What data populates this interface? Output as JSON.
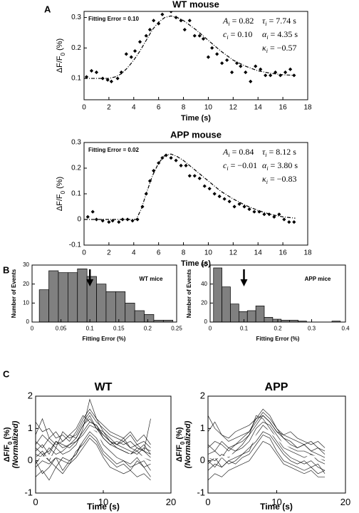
{
  "panel_labels": [
    "A",
    "B",
    "C"
  ],
  "chart_data": [
    {
      "type": "scatter",
      "title": "WT mouse",
      "annotation": "Fitting Error = 0.10",
      "params": [
        {
          "symbol": "A",
          "sub": "i",
          "value": "= 0.82"
        },
        {
          "symbol": "τ",
          "sub": "i",
          "value": "= 7.74 s"
        },
        {
          "symbol": "c",
          "sub": "i",
          "value": "= 0.10"
        },
        {
          "symbol": "α",
          "sub": "i",
          "value": "= 4.35 s"
        },
        {
          "symbol": "κ",
          "sub": "i",
          "value": "= −0.57"
        }
      ],
      "x": [
        0.2,
        0.6,
        1.0,
        1.5,
        1.9,
        2.2,
        2.7,
        3.0,
        3.4,
        3.8,
        4.1,
        4.5,
        5.0,
        5.3,
        5.6,
        6.0,
        6.3,
        6.7,
        7.0,
        7.4,
        7.8,
        8.1,
        8.5,
        8.9,
        9.3,
        9.6,
        10.0,
        10.3,
        10.7,
        11.1,
        11.5,
        11.9,
        12.3,
        12.6,
        13.0,
        13.4,
        13.8,
        14.2,
        14.6,
        15.0,
        15.4,
        15.8,
        16.2,
        16.6,
        16.9
      ],
      "values": [
        0.105,
        0.125,
        0.12,
        0.1,
        0.095,
        0.09,
        0.1,
        0.12,
        0.18,
        0.17,
        0.19,
        0.22,
        0.24,
        0.26,
        0.29,
        0.28,
        0.31,
        0.325,
        0.32,
        0.3,
        0.29,
        0.26,
        0.29,
        0.24,
        0.24,
        0.23,
        0.17,
        0.2,
        0.18,
        0.15,
        0.16,
        0.12,
        0.15,
        0.14,
        0.12,
        0.09,
        0.14,
        0.13,
        0.11,
        0.11,
        0.12,
        0.11,
        0.12,
        0.13,
        0.11
      ],
      "fit": {
        "x": [
          0,
          1,
          2,
          2.5,
          3,
          3.5,
          4,
          4.5,
          5,
          5.5,
          6,
          6.5,
          7,
          7.5,
          8,
          9,
          10,
          11,
          12,
          13,
          14,
          15,
          16,
          17
        ],
        "values": [
          0.1,
          0.1,
          0.1,
          0.105,
          0.115,
          0.135,
          0.16,
          0.19,
          0.225,
          0.26,
          0.285,
          0.3,
          0.305,
          0.3,
          0.29,
          0.26,
          0.225,
          0.19,
          0.16,
          0.14,
          0.125,
          0.117,
          0.112,
          0.11
        ]
      },
      "xlabel": "Time (s)",
      "ylabel": {
        "main": "ΔF/F",
        "sub": "0",
        "tail": " (%)"
      },
      "xlim": [
        0,
        18
      ],
      "xticks": [
        0,
        2,
        4,
        6,
        8,
        10,
        12,
        14,
        16,
        18
      ],
      "ylim": [
        0.03,
        0.32
      ],
      "yticks": [
        0.1,
        0.2,
        0.3
      ],
      "color": "#000000"
    },
    {
      "type": "scatter",
      "title": "APP mouse",
      "annotation": "Fitting Error = 0.02",
      "params": [
        {
          "symbol": "A",
          "sub": "i",
          "value": "= 0.84"
        },
        {
          "symbol": "τ",
          "sub": "i",
          "value": "= 8.12 s"
        },
        {
          "symbol": "c",
          "sub": "i",
          "value": "= −0.01"
        },
        {
          "symbol": "α",
          "sub": "i",
          "value": "= 3.80 s"
        },
        {
          "symbol": "κ",
          "sub": "i",
          "value": "= −0.83"
        }
      ],
      "x": [
        0.3,
        0.7,
        1.0,
        1.5,
        2.0,
        2.3,
        2.8,
        3.1,
        3.5,
        3.9,
        4.3,
        4.7,
        5.0,
        5.3,
        5.6,
        6.0,
        6.3,
        6.6,
        7.0,
        7.4,
        7.8,
        8.2,
        8.5,
        8.9,
        9.3,
        9.7,
        10.1,
        10.5,
        10.9,
        11.3,
        11.7,
        12.1,
        12.5,
        12.9,
        13.3,
        13.7,
        14.1,
        14.5,
        14.9,
        15.3,
        15.7,
        16.1,
        16.5,
        16.9
      ],
      "values": [
        0.01,
        0.03,
        0.0,
        -0.005,
        -0.01,
        -0.005,
        -0.01,
        0.0,
        0.0,
        -0.005,
        0.0,
        0.05,
        0.1,
        0.15,
        0.19,
        0.22,
        0.24,
        0.25,
        0.24,
        0.23,
        0.21,
        0.21,
        0.17,
        0.17,
        0.16,
        0.13,
        0.12,
        0.1,
        0.09,
        0.08,
        0.07,
        0.05,
        0.06,
        0.05,
        0.04,
        0.03,
        0.03,
        0.02,
        0.02,
        0.01,
        0.02,
        0.0,
        -0.01,
        -0.01
      ],
      "fit": {
        "x": [
          0,
          4.2,
          4.6,
          5,
          5.5,
          6,
          6.5,
          7,
          7.5,
          8,
          9,
          10,
          11,
          12,
          13,
          14,
          15,
          16,
          17
        ],
        "values": [
          0,
          0,
          0.04,
          0.1,
          0.17,
          0.22,
          0.25,
          0.255,
          0.245,
          0.23,
          0.19,
          0.15,
          0.11,
          0.08,
          0.055,
          0.035,
          0.02,
          0.01,
          0.005
        ]
      },
      "xlabel": "Time (s)",
      "ylabel": {
        "main": "ΔF/F",
        "sub": "0",
        "tail": " (%)"
      },
      "xlim": [
        0,
        18
      ],
      "xticks": [
        0,
        2,
        4,
        6,
        8,
        10,
        12,
        14,
        16,
        18
      ],
      "ylim": [
        -0.1,
        0.3
      ],
      "yticks": [
        -0.1,
        0,
        0.1,
        0.2,
        0.3
      ],
      "color": "#000000"
    },
    {
      "type": "histogram",
      "annotation": "WT mice",
      "bins": [
        0.0125,
        0.029,
        0.0455,
        0.062,
        0.0785,
        0.095,
        0.1115,
        0.128,
        0.1445,
        0.161,
        0.1775,
        0.194,
        0.2105,
        0.227,
        0.2435
      ],
      "counts": [
        17,
        27,
        26,
        26,
        28,
        24,
        20,
        16,
        16,
        10,
        6,
        4,
        1,
        1
      ],
      "arrow_x": 0.1,
      "xlabel": "Fitting Error (%)",
      "ylabel": {
        "main": "Number of Events"
      },
      "xlim": [
        0,
        0.25
      ],
      "xticks": [
        0,
        0.05,
        0.1,
        0.15,
        0.2,
        0.25
      ],
      "ylim": [
        0,
        30
      ],
      "yticks": [
        0,
        10,
        20,
        30
      ],
      "color": "#808080"
    },
    {
      "type": "histogram",
      "annotation": "APP mice",
      "bins": [
        0.01,
        0.035,
        0.06,
        0.085,
        0.11,
        0.135,
        0.16,
        0.185,
        0.21,
        0.235,
        0.26,
        0.285,
        0.31,
        0.335,
        0.36,
        0.385
      ],
      "counts": [
        57,
        37,
        19,
        11,
        12,
        17,
        5,
        3,
        2,
        2,
        1,
        0,
        0,
        0,
        1
      ],
      "arrow_x": 0.1,
      "xlabel": "Fitting Error (%)",
      "ylabel": {
        "main": "Number of Events"
      },
      "xlim": [
        0,
        0.4
      ],
      "xticks": [
        0,
        0.1,
        0.2,
        0.3,
        0.4
      ],
      "ylim": [
        0,
        60
      ],
      "yticks": [
        0,
        20,
        40,
        60
      ],
      "color": "#808080"
    },
    {
      "type": "line",
      "title": "WT",
      "x": [
        0,
        1,
        2,
        3,
        4,
        5,
        6,
        7,
        8,
        9,
        10,
        11,
        12,
        13,
        14,
        15,
        16,
        17
      ],
      "traces": [
        [
          0.3,
          0.5,
          0.2,
          0.6,
          0.4,
          0.5,
          0.7,
          1.1,
          1.4,
          1.0,
          0.8,
          0.6,
          0.5,
          0.7,
          0.4,
          0.3,
          0.5,
          0.2
        ],
        [
          -0.2,
          0.0,
          -0.1,
          0.1,
          -0.3,
          0.0,
          0.2,
          0.6,
          0.9,
          0.7,
          0.3,
          0.1,
          -0.1,
          0.0,
          -0.2,
          -0.1,
          0.0,
          -0.3
        ],
        [
          0.5,
          0.8,
          0.6,
          0.4,
          0.9,
          0.7,
          0.8,
          1.2,
          1.5,
          1.2,
          1.0,
          0.8,
          0.7,
          0.6,
          0.8,
          0.5,
          0.6,
          0.4
        ],
        [
          0.0,
          -0.4,
          -0.2,
          0.1,
          0.0,
          -0.1,
          0.3,
          0.5,
          0.8,
          0.6,
          0.2,
          0.0,
          -0.2,
          -0.1,
          -0.3,
          0.0,
          -0.2,
          -0.5
        ],
        [
          0.2,
          0.1,
          0.4,
          0.2,
          0.3,
          0.5,
          0.6,
          0.9,
          1.2,
          1.1,
          0.7,
          0.5,
          0.4,
          0.3,
          0.2,
          0.3,
          0.1,
          0.0
        ],
        [
          1.2,
          0.9,
          1.0,
          0.7,
          0.8,
          0.6,
          0.9,
          1.3,
          1.6,
          1.3,
          1.1,
          0.9,
          0.8,
          0.7,
          0.9,
          0.6,
          0.8,
          0.5
        ],
        [
          -0.5,
          -0.3,
          -0.6,
          -0.2,
          -0.4,
          -0.1,
          0.1,
          0.4,
          0.7,
          0.5,
          0.1,
          -0.2,
          -0.3,
          -0.4,
          -0.3,
          -0.5,
          -0.4,
          -0.6
        ],
        [
          0.1,
          0.3,
          0.0,
          0.4,
          0.2,
          0.3,
          0.5,
          1.0,
          1.9,
          1.3,
          0.9,
          0.6,
          0.4,
          0.3,
          0.2,
          0.4,
          0.3,
          0.1
        ],
        [
          0.6,
          0.4,
          0.7,
          0.5,
          0.6,
          0.8,
          1.0,
          1.4,
          1.2,
          1.1,
          0.8,
          0.6,
          0.5,
          0.6,
          0.4,
          0.5,
          0.3,
          1.3
        ],
        [
          -0.1,
          0.2,
          0.0,
          -0.2,
          0.1,
          0.0,
          0.2,
          0.7,
          1.0,
          0.9,
          0.5,
          0.3,
          0.1,
          0.0,
          -0.1,
          0.1,
          -0.2,
          -0.1
        ],
        [
          0.4,
          0.2,
          0.3,
          0.6,
          0.5,
          0.4,
          0.6,
          0.8,
          1.1,
          1.0,
          0.9,
          0.7,
          0.5,
          0.4,
          0.3,
          0.2,
          0.4,
          0.3
        ],
        [
          0.8,
          1.3,
          0.7,
          0.9,
          0.6,
          0.8,
          0.7,
          1.1,
          1.3,
          1.0,
          0.7,
          0.5,
          0.6,
          0.5,
          0.6,
          0.4,
          0.3,
          0.2
        ]
      ],
      "mean": [
        0.1,
        0.1,
        0.12,
        0.12,
        0.15,
        0.22,
        0.35,
        0.7,
        1.0,
        0.85,
        0.6,
        0.4,
        0.3,
        0.22,
        0.18,
        0.15,
        0.12,
        0.05
      ],
      "trace_color": "#000000",
      "mean_color": "#ffffff",
      "xlabel": "Time (s)",
      "ylabel": {
        "main": "ΔF/F",
        "sub": "0",
        "tail": " (%)",
        "note": "(Normalized)"
      },
      "xlim": [
        0,
        20
      ],
      "xticks": [
        0,
        10,
        20
      ],
      "ylim": [
        -1,
        2
      ],
      "yticks": [
        -1,
        0,
        1,
        2
      ]
    },
    {
      "type": "line",
      "title": "APP",
      "x": [
        0,
        1,
        2,
        3,
        4,
        5,
        6,
        7,
        8,
        9,
        10,
        11,
        12,
        13,
        14,
        15,
        16,
        17
      ],
      "traces": [
        [
          1.4,
          1.0,
          0.8,
          0.6,
          0.7,
          0.8,
          0.9,
          1.2,
          1.5,
          1.3,
          1.0,
          0.8,
          0.7,
          0.6,
          0.5,
          0.6,
          0.4,
          0.3
        ],
        [
          -0.3,
          -0.1,
          -0.2,
          0.0,
          -0.1,
          0.1,
          0.2,
          0.5,
          0.8,
          0.7,
          0.3,
          0.0,
          -0.1,
          -0.2,
          -0.3,
          -0.2,
          -0.4,
          -0.3
        ],
        [
          0.4,
          0.6,
          0.5,
          0.3,
          0.5,
          0.7,
          0.9,
          1.3,
          1.6,
          1.4,
          1.0,
          0.7,
          0.5,
          0.4,
          0.5,
          0.3,
          0.4,
          0.2
        ],
        [
          0.0,
          -0.2,
          0.1,
          -0.1,
          0.0,
          0.2,
          0.4,
          0.6,
          0.9,
          0.8,
          0.5,
          0.2,
          0.0,
          -0.1,
          0.0,
          -0.2,
          -0.1,
          -0.4
        ],
        [
          0.2,
          0.3,
          0.1,
          0.4,
          0.3,
          0.4,
          0.6,
          1.0,
          1.2,
          1.1,
          0.8,
          0.5,
          0.4,
          0.3,
          0.3,
          0.2,
          0.1,
          0.0
        ],
        [
          0.9,
          1.2,
          0.8,
          0.7,
          0.9,
          1.0,
          1.1,
          1.3,
          1.4,
          1.2,
          0.9,
          0.8,
          0.9,
          0.7,
          0.6,
          0.5,
          0.6,
          0.4
        ],
        [
          -0.6,
          -0.4,
          -0.5,
          -0.3,
          -0.2,
          -0.1,
          0.0,
          0.3,
          0.6,
          0.5,
          0.2,
          -0.1,
          -0.2,
          -0.3,
          -0.4,
          -0.3,
          -0.5,
          -0.5
        ],
        [
          0.1,
          0.0,
          0.2,
          0.1,
          0.3,
          0.5,
          0.8,
          1.4,
          1.3,
          1.0,
          0.7,
          0.4,
          0.3,
          0.2,
          0.1,
          0.2,
          0.0,
          -0.1
        ],
        [
          0.5,
          0.3,
          0.6,
          0.4,
          0.5,
          0.6,
          0.8,
          1.1,
          1.4,
          1.2,
          0.9,
          0.7,
          0.6,
          0.4,
          0.5,
          0.3,
          0.2,
          0.1
        ],
        [
          -0.1,
          0.1,
          -0.2,
          0.0,
          0.1,
          0.2,
          0.3,
          0.8,
          1.1,
          0.9,
          0.6,
          0.3,
          0.1,
          0.0,
          -0.1,
          0.0,
          -0.2,
          -0.3
        ]
      ],
      "mean": [
        0.1,
        0.1,
        0.12,
        0.15,
        0.2,
        0.3,
        0.45,
        0.75,
        1.0,
        0.9,
        0.7,
        0.5,
        0.35,
        0.25,
        0.18,
        0.15,
        0.1,
        0.05
      ],
      "trace_color": "#000000",
      "mean_color": "#ffffff",
      "xlabel": "Time (s)",
      "ylabel": {
        "main": "ΔF/F",
        "sub": "0",
        "tail": " (%)",
        "note": "(Normalized)"
      },
      "xlim": [
        0,
        20
      ],
      "xticks": [
        0,
        10,
        20
      ],
      "ylim": [
        -1,
        2
      ],
      "yticks": [
        -1,
        0,
        1,
        2
      ]
    }
  ]
}
